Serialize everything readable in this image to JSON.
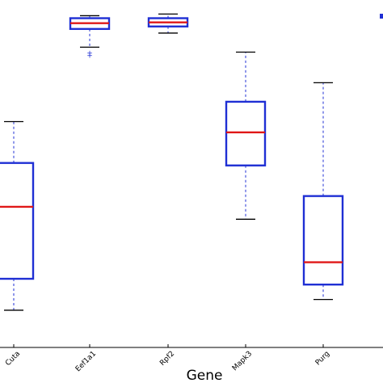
{
  "chart_data": {
    "type": "boxplot",
    "xlabel": "Gene",
    "categories": [
      "Cuta",
      "Eef1a1",
      "Rpf2",
      "Mapk3",
      "Purg"
    ],
    "boxes": [
      {
        "name": "Cuta",
        "whisker_low": 45,
        "q1": 83,
        "median": 170,
        "q3": 223,
        "whisker_high": 273,
        "outliers": []
      },
      {
        "name": "Eef1a1",
        "whisker_low": 363,
        "q1": 385,
        "median": 392,
        "q3": 398,
        "whisker_high": 401,
        "outliers": [
          356,
          353
        ]
      },
      {
        "name": "Rpf2",
        "whisker_low": 380,
        "q1": 388,
        "median": 393,
        "q3": 398,
        "whisker_high": 403,
        "outliers": []
      },
      {
        "name": "Mapk3",
        "whisker_low": 155,
        "q1": 220,
        "median": 260,
        "q3": 297,
        "whisker_high": 357,
        "outliers": []
      },
      {
        "name": "Purg",
        "whisker_low": 58,
        "q1": 76,
        "median": 103,
        "q3": 183,
        "whisker_high": 320,
        "outliers": []
      }
    ],
    "ylim": [
      0,
      420
    ],
    "colors": {
      "box": "#1f2fd4",
      "median": "#e01818",
      "whisker": "#1f2fd4",
      "cap": "#000000"
    },
    "grid": false
  }
}
